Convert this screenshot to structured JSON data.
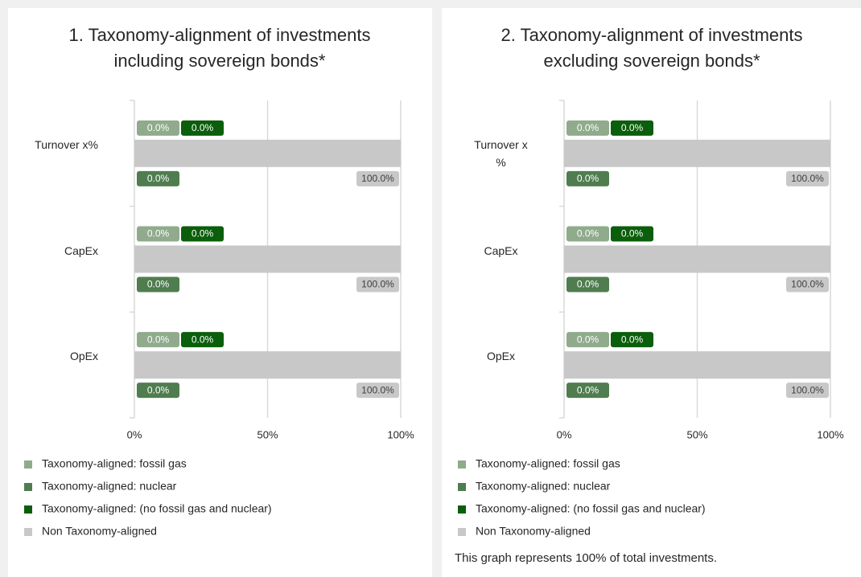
{
  "chart_data": [
    {
      "type": "bar",
      "orientation": "horizontal",
      "stacked": true,
      "title": "1. Taxonomy-alignment of investments including sovereign bonds*",
      "categories": [
        "Turnover x%",
        "CapEx",
        "OpEx"
      ],
      "series": [
        {
          "name": "Taxonomy-aligned: fossil gas",
          "color": "#8fab8c",
          "values": [
            0,
            0,
            0
          ],
          "value_labels": [
            "0.0%",
            "0.0%",
            "0.0%"
          ]
        },
        {
          "name": "Taxonomy-aligned: nuclear",
          "color": "#4f7d4f",
          "values": [
            0,
            0,
            0
          ],
          "value_labels": [
            "0.0%",
            "0.0%",
            "0.0%"
          ]
        },
        {
          "name": "Taxonomy-aligned: (no fossil gas and nuclear)",
          "color": "#0b5e0b",
          "values": [
            0,
            0,
            0
          ],
          "value_labels": [
            "0.0%",
            "0.0%",
            "0.0%"
          ]
        },
        {
          "name": "Non Taxonomy-aligned",
          "color": "#c8c8c8",
          "values": [
            100,
            100,
            100
          ],
          "value_labels": [
            "100.0%",
            "100.0%",
            "100.0%"
          ]
        }
      ],
      "xlim": [
        0,
        100
      ],
      "xticks": [
        {
          "value": 0,
          "label": "0%"
        },
        {
          "value": 50,
          "label": "50%"
        },
        {
          "value": 100,
          "label": "100%"
        }
      ],
      "grid": true,
      "legend": "bottom"
    },
    {
      "type": "bar",
      "orientation": "horizontal",
      "stacked": true,
      "title": "2. Taxonomy-alignment of investments excluding sovereign bonds*",
      "categories": [
        "Turnover x %",
        "CapEx",
        "OpEx"
      ],
      "series": [
        {
          "name": "Taxonomy-aligned: fossil gas",
          "color": "#8fab8c",
          "values": [
            0,
            0,
            0
          ],
          "value_labels": [
            "0.0%",
            "0.0%",
            "0.0%"
          ]
        },
        {
          "name": "Taxonomy-aligned: nuclear",
          "color": "#4f7d4f",
          "values": [
            0,
            0,
            0
          ],
          "value_labels": [
            "0.0%",
            "0.0%",
            "0.0%"
          ]
        },
        {
          "name": "Taxonomy-aligned: (no fossil gas and nuclear)",
          "color": "#0b5e0b",
          "values": [
            0,
            0,
            0
          ],
          "value_labels": [
            "0.0%",
            "0.0%",
            "0.0%"
          ]
        },
        {
          "name": "Non Taxonomy-aligned",
          "color": "#c8c8c8",
          "values": [
            100,
            100,
            100
          ],
          "value_labels": [
            "100.0%",
            "100.0%",
            "100.0%"
          ]
        }
      ],
      "xlim": [
        0,
        100
      ],
      "xticks": [
        {
          "value": 0,
          "label": "0%"
        },
        {
          "value": 50,
          "label": "50%"
        },
        {
          "value": 100,
          "label": "100%"
        }
      ],
      "grid": true,
      "legend": "bottom",
      "note": "This graph represents 100% of total investments."
    }
  ]
}
